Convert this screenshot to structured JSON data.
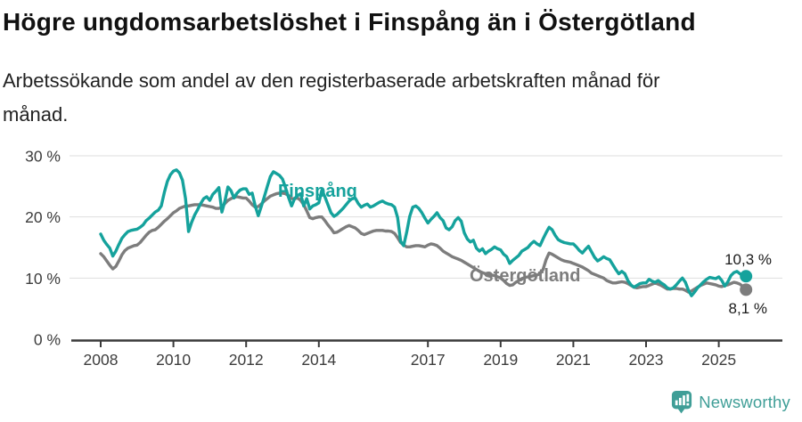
{
  "header": {
    "title": "Högre ungdomsarbetslöshet i Finspång än i Östergötland",
    "subtitle_lines": [
      "Arbetssökande som andel av den registerbaserade arbetskraften månad för",
      "månad."
    ]
  },
  "branding": {
    "wordmark": "Newsworthy",
    "color": "#3f9e97",
    "icon": "bar-chart-speech-bubble-icon"
  },
  "chart_data": {
    "type": "line",
    "title": "Högre ungdomsarbetslöshet i Finspång än i Östergötland",
    "subtitle": "Arbetssökande som andel av den registerbaserade arbetskraften månad för månad.",
    "unit": "%",
    "frequency": "monthly",
    "x_start": "2008-01",
    "x_end": "2025-10",
    "ylim": [
      0,
      32
    ],
    "grid": "horizontal",
    "grid_color": "#dedede",
    "axis_color": "#3a3a3a",
    "axis_text_color": "#3d3d3d",
    "y_axis": {
      "ticks": [
        {
          "value": 0,
          "label": "0 %"
        },
        {
          "value": 10,
          "label": "10 %"
        },
        {
          "value": 20,
          "label": "20 %"
        },
        {
          "value": 30,
          "label": "30 %"
        }
      ]
    },
    "x_axis": {
      "tick_years": [
        2008,
        2010,
        2012,
        2014,
        2017,
        2019,
        2021,
        2023,
        2025
      ]
    },
    "series": [
      {
        "key": "finspang",
        "name": "Finspång",
        "color": "#15a29c",
        "end_label": "10,3 %",
        "values": [
          17.2,
          16.2,
          15.5,
          14.9,
          13.6,
          14.4,
          15.5,
          16.5,
          17.1,
          17.6,
          17.8,
          17.9,
          18.0,
          18.3,
          18.7,
          19.4,
          19.8,
          20.3,
          20.8,
          21.1,
          21.8,
          24.0,
          25.8,
          26.9,
          27.5,
          27.7,
          27.2,
          26.0,
          23.0,
          17.6,
          19.1,
          20.3,
          21.2,
          22.2,
          23.0,
          23.3,
          22.7,
          23.7,
          24.2,
          24.8,
          20.8,
          22.6,
          24.9,
          24.3,
          23.1,
          23.9,
          24.4,
          24.6,
          24.6,
          23.7,
          23.9,
          21.8,
          20.2,
          21.7,
          23.3,
          25.0,
          26.6,
          27.4,
          27.1,
          26.8,
          26.2,
          24.8,
          23.2,
          21.8,
          23.0,
          23.5,
          23.8,
          21.8,
          23.0,
          21.3,
          21.8,
          22.0,
          22.3,
          24.4,
          23.3,
          22.0,
          20.7,
          20.1,
          20.4,
          20.9,
          21.4,
          22.0,
          22.6,
          23.0,
          23.1,
          22.2,
          21.6,
          21.9,
          22.1,
          21.6,
          21.8,
          22.1,
          22.4,
          22.6,
          22.3,
          22.1,
          22.0,
          21.6,
          19.9,
          16.0,
          15.3,
          17.5,
          20.1,
          21.6,
          21.8,
          21.4,
          20.7,
          19.8,
          19.0,
          19.6,
          20.1,
          20.7,
          19.9,
          19.4,
          18.2,
          17.9,
          18.4,
          19.4,
          19.9,
          19.3,
          17.4,
          16.4,
          15.9,
          16.2,
          14.9,
          14.4,
          14.8,
          14.0,
          14.4,
          14.7,
          15.1,
          14.8,
          14.6,
          13.9,
          13.5,
          12.4,
          12.9,
          13.3,
          13.7,
          14.4,
          14.7,
          15.0,
          15.6,
          16.0,
          15.6,
          15.3,
          16.4,
          17.4,
          18.3,
          17.9,
          17.0,
          16.3,
          16.0,
          15.8,
          15.7,
          15.6,
          15.6,
          15.1,
          14.5,
          14.1,
          14.7,
          15.2,
          14.3,
          13.4,
          12.8,
          13.1,
          13.5,
          13.2,
          13.0,
          12.2,
          11.4,
          10.7,
          11.1,
          10.7,
          9.6,
          8.9,
          8.5,
          8.8,
          9.1,
          9.2,
          9.2,
          9.8,
          9.5,
          9.3,
          9.6,
          9.2,
          8.9,
          8.4,
          8.2,
          8.4,
          8.9,
          9.5,
          10.0,
          9.3,
          8.0,
          7.1,
          7.7,
          8.4,
          8.9,
          9.4,
          9.8,
          10.1,
          10.0,
          9.9,
          10.2,
          9.6,
          8.7,
          9.4,
          10.4,
          10.9,
          11.1,
          10.7,
          10.4,
          10.3
        ]
      },
      {
        "key": "ostergotland",
        "name": "Östergötland",
        "color": "#7d7d7d",
        "end_label": "8,1 %",
        "values": [
          14.0,
          13.5,
          12.8,
          12.1,
          11.5,
          11.9,
          12.8,
          13.8,
          14.5,
          14.9,
          15.1,
          15.3,
          15.4,
          15.8,
          16.4,
          17.0,
          17.5,
          17.8,
          17.9,
          18.3,
          18.8,
          19.3,
          19.7,
          20.2,
          20.7,
          21.0,
          21.4,
          21.6,
          21.8,
          21.8,
          21.9,
          22.0,
          22.0,
          22.0,
          21.9,
          21.8,
          21.7,
          21.6,
          21.4,
          21.4,
          21.6,
          22.2,
          22.7,
          23.0,
          23.2,
          23.3,
          23.2,
          23.1,
          23.1,
          22.6,
          22.0,
          21.6,
          21.7,
          22.1,
          22.6,
          23.0,
          23.4,
          23.6,
          23.8,
          23.9,
          23.9,
          23.8,
          23.5,
          23.0,
          23.0,
          23.1,
          22.7,
          22.0,
          21.0,
          19.9,
          19.7,
          19.9,
          20.0,
          20.0,
          19.4,
          18.7,
          18.1,
          17.4,
          17.5,
          17.8,
          18.1,
          18.4,
          18.6,
          18.4,
          18.2,
          17.8,
          17.3,
          17.1,
          17.3,
          17.5,
          17.7,
          17.8,
          17.8,
          17.8,
          17.7,
          17.7,
          17.6,
          17.3,
          16.6,
          15.8,
          15.4,
          15.1,
          15.1,
          15.2,
          15.3,
          15.3,
          15.2,
          15.1,
          15.4,
          15.6,
          15.5,
          15.3,
          14.9,
          14.4,
          14.1,
          13.8,
          13.5,
          13.3,
          13.1,
          12.9,
          12.6,
          12.3,
          12.0,
          11.7,
          11.4,
          11.1,
          10.9,
          10.7,
          10.6,
          10.5,
          10.4,
          10.2,
          10.0,
          9.6,
          9.1,
          8.8,
          8.9,
          9.3,
          9.6,
          9.9,
          10.1,
          10.2,
          10.3,
          10.4,
          10.5,
          10.7,
          11.4,
          13.0,
          14.1,
          13.9,
          13.6,
          13.3,
          13.0,
          12.8,
          12.7,
          12.6,
          12.4,
          12.2,
          12.0,
          11.8,
          11.5,
          11.2,
          10.8,
          10.6,
          10.4,
          10.2,
          10.0,
          9.6,
          9.4,
          9.2,
          9.2,
          9.3,
          9.4,
          9.3,
          9.1,
          8.8,
          8.5,
          8.4,
          8.5,
          8.6,
          8.6,
          8.8,
          9.0,
          9.2,
          9.0,
          8.8,
          8.5,
          8.2,
          8.2,
          8.3,
          8.3,
          8.2,
          8.2,
          8.0,
          7.7,
          7.9,
          8.2,
          8.5,
          8.8,
          9.0,
          9.2,
          9.1,
          9.0,
          8.9,
          8.7,
          8.6,
          8.8,
          8.9,
          9.1,
          9.3,
          9.2,
          9.0,
          8.6,
          8.1
        ]
      }
    ]
  }
}
